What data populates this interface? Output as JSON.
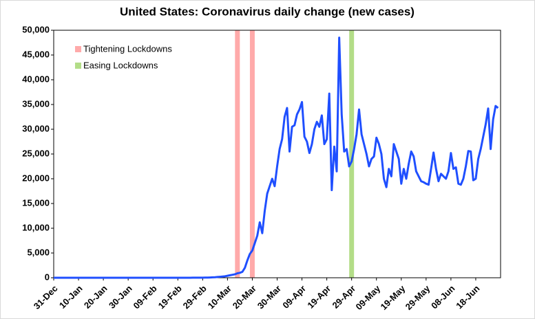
{
  "chart_data": {
    "type": "line",
    "title": "United States: Coronavirus daily change (new cases)",
    "categories": [
      "31-Dec",
      null,
      null,
      null,
      null,
      null,
      null,
      null,
      null,
      null,
      "10-Jan",
      null,
      null,
      null,
      null,
      null,
      null,
      null,
      null,
      null,
      "20-Jan",
      null,
      null,
      null,
      null,
      null,
      null,
      null,
      null,
      null,
      "30-Jan",
      null,
      null,
      null,
      null,
      null,
      null,
      null,
      null,
      null,
      "09-Feb",
      null,
      null,
      null,
      null,
      null,
      null,
      null,
      null,
      null,
      "19-Feb",
      null,
      null,
      null,
      null,
      null,
      null,
      null,
      null,
      null,
      "29-Feb",
      null,
      null,
      null,
      null,
      null,
      null,
      null,
      null,
      null,
      "10-Mar",
      null,
      null,
      null,
      null,
      null,
      null,
      null,
      null,
      null,
      "20-Mar",
      null,
      null,
      null,
      null,
      null,
      null,
      null,
      null,
      null,
      "30-Mar",
      null,
      null,
      null,
      null,
      null,
      null,
      null,
      null,
      null,
      "09-Apr",
      null,
      null,
      null,
      null,
      null,
      null,
      null,
      null,
      null,
      "19-Apr",
      null,
      null,
      null,
      null,
      null,
      null,
      null,
      null,
      null,
      "29-Apr",
      null,
      null,
      null,
      null,
      null,
      null,
      null,
      null,
      null,
      "09-May",
      null,
      null,
      null,
      null,
      null,
      null,
      null,
      null,
      null,
      "19-May",
      null,
      null,
      null,
      null,
      null,
      null,
      null,
      null,
      null,
      "29-May",
      null,
      null,
      null,
      null,
      null,
      null,
      null,
      null,
      null,
      "08-Jun",
      null,
      null,
      null,
      null,
      null,
      null,
      null,
      null,
      null,
      "18-Jun",
      null,
      null,
      null,
      null,
      null,
      null,
      null,
      null,
      null
    ],
    "series": [
      {
        "name": "New cases",
        "color": "#1f4fff",
        "values": [
          0,
          0,
          0,
          0,
          0,
          0,
          0,
          0,
          0,
          0,
          0,
          0,
          0,
          0,
          0,
          0,
          0,
          0,
          0,
          0,
          0,
          0,
          0,
          0,
          0,
          0,
          0,
          0,
          0,
          0,
          0,
          0,
          0,
          0,
          0,
          0,
          0,
          0,
          0,
          0,
          0,
          0,
          0,
          0,
          1,
          0,
          0,
          0,
          0,
          0,
          0,
          0,
          0,
          0,
          1,
          5,
          10,
          15,
          10,
          20,
          20,
          30,
          40,
          60,
          80,
          100,
          150,
          200,
          250,
          300,
          400,
          500,
          600,
          700,
          900,
          1000,
          1200,
          2000,
          3500,
          4800,
          5500,
          7000,
          8500,
          11200,
          9000,
          13500,
          17000,
          18500,
          20000,
          18500,
          22500,
          26000,
          28000,
          32500,
          34300,
          25500,
          30500,
          30800,
          33000,
          34000,
          35500,
          28500,
          27500,
          25200,
          27000,
          30000,
          31500,
          30500,
          32800,
          27000,
          28000,
          37200,
          17700,
          26500,
          21500,
          48500,
          33000,
          25500,
          26000,
          22500,
          23500,
          26000,
          29000,
          34000,
          29000,
          27000,
          25000,
          22500,
          24000,
          24500,
          28300,
          27000,
          25000,
          20000,
          18300,
          22000,
          20500,
          27000,
          25500,
          24000,
          19000,
          22000,
          20000,
          23000,
          25500,
          24500,
          21500,
          20500,
          19500,
          19300,
          19000,
          18800,
          22000,
          25300,
          22000,
          19500,
          21000,
          20500,
          20000,
          21500,
          25200,
          22000,
          22300,
          19000,
          18800,
          20000,
          22500,
          25600,
          25500,
          19700,
          20000,
          24000,
          26000,
          28500,
          31000,
          34200,
          26000,
          32000,
          34700,
          34300
        ]
      }
    ],
    "markers": [
      {
        "name": "Tightening Lockdowns",
        "color": "#ffaaaa",
        "at": [
          74,
          80
        ]
      },
      {
        "name": "Easing Lockdowns",
        "color": "#b3dd88",
        "at": [
          120
        ]
      }
    ],
    "ylim": [
      0,
      50000
    ],
    "yticks": [
      0,
      {
        "value": 5000,
        "label": "5,000"
      },
      {
        "value": 10000,
        "label": "10,000"
      },
      {
        "value": 15000,
        "label": "15,000"
      },
      {
        "value": 20000,
        "label": "20,000"
      },
      {
        "value": 25000,
        "label": "25,000"
      },
      {
        "value": 30000,
        "label": "30,000"
      },
      {
        "value": 35000,
        "label": "35,000"
      },
      {
        "value": 40000,
        "label": "40,000"
      },
      {
        "value": 45000,
        "label": "45,000"
      },
      {
        "value": 50000,
        "label": "50,000"
      }
    ],
    "grid": false
  }
}
